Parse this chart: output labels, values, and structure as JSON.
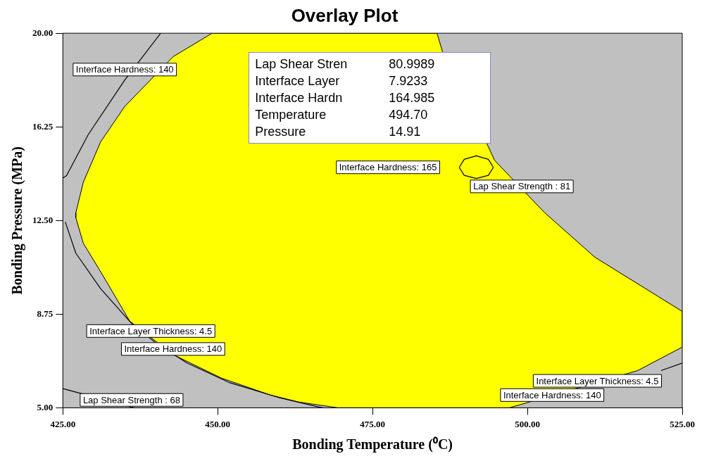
{
  "chart_data": {
    "type": "line",
    "title": "Overlay Plot",
    "xlabel": "Bonding Temperature (⁰C)",
    "ylabel": "Bonding Pressure (MPa)",
    "xlim": [
      425,
      525
    ],
    "ylim": [
      5,
      20
    ],
    "xticks": [
      {
        "value": 425,
        "label": "425.00"
      },
      {
        "value": 450,
        "label": "450.00"
      },
      {
        "value": 475,
        "label": "475.00"
      },
      {
        "value": 500,
        "label": "500.00"
      },
      {
        "value": 525,
        "label": "525.00"
      }
    ],
    "yticks": [
      {
        "value": 5,
        "label": "5.00"
      },
      {
        "value": 8.75,
        "label": "8.75"
      },
      {
        "value": 12.5,
        "label": "12.50"
      },
      {
        "value": 16.25,
        "label": "16.25"
      },
      {
        "value": 20,
        "label": "20.00"
      }
    ],
    "grid": false,
    "legend": false,
    "marker": "none",
    "line_style": "solid",
    "series": [
      {
        "type": "area",
        "color": "#ffff00",
        "x": [
          449.1,
          442.8,
          435,
          431.1,
          428.3,
          427.1,
          427.1,
          428.3,
          431.1,
          435.8,
          442.8,
          450.6,
          458.5,
          463.1,
          469.4,
          497.1,
          517.8,
          525,
          525,
          521.1,
          510.9,
          502.8,
          494.7,
          493.7,
          486.3,
          485.4,
          449.1
        ],
        "values": [
          20,
          19.06,
          17.07,
          15.65,
          14.03,
          12.81,
          12.61,
          11.59,
          10.45,
          8.47,
          7.13,
          6.19,
          5.51,
          5.23,
          5,
          5,
          6.49,
          7.43,
          8.86,
          9.46,
          11.03,
          12.81,
          14.91,
          15.45,
          19.26,
          20,
          20
        ]
      },
      {
        "type": "line",
        "color": "#000000",
        "x": [
          440.8,
          435,
          429.1,
          425.6,
          425
        ],
        "values": [
          20,
          18.13,
          15.94,
          14.3,
          14.2
        ]
      },
      {
        "type": "line",
        "color": "#000000",
        "x": [
          425.4,
          427.1,
          431.1,
          436.2,
          440,
          445,
          452,
          460,
          466,
          467
        ],
        "values": [
          12.44,
          11.19,
          9.77,
          8.35,
          7.6,
          6.8,
          6,
          5.4,
          5.05,
          5
        ]
      },
      {
        "type": "line",
        "color": "#000000",
        "x": [
          425,
          436.5
        ],
        "values": [
          5.77,
          5
        ]
      },
      {
        "type": "line",
        "color": "#000000",
        "x": [
          521.6,
          525
        ],
        "values": [
          6.49,
          6.79
        ]
      },
      {
        "type": "line",
        "color": "#000000",
        "x": [
          489,
          489.8,
          491.75,
          493.7,
          494.5
        ],
        "values": [
          14.63,
          14.95,
          15.09,
          14.95,
          14.63
        ]
      },
      {
        "type": "line",
        "color": "#000000",
        "x": [
          489,
          489.8,
          491.75,
          493.7,
          494.5
        ],
        "values": [
          14.63,
          14.31,
          14.18,
          14.31,
          14.63
        ]
      }
    ],
    "annotations": [
      "Interface Hardness: 140",
      "Interface Hardness: 165",
      "Lap Shear Strength : 81",
      "Interface Layer Thickness: 4.5",
      "Interface Hardness: 140",
      "Lap Shear Strength : 68",
      "Interface Layer Thickness: 4.5",
      "Interface Hardness: 140",
      "Lap Shear Stren 80.9989",
      "Interface Layer 7.9233",
      "Interface Hardn 164.985",
      "Temperature 494.70",
      "Pressure 14.91"
    ]
  }
}
